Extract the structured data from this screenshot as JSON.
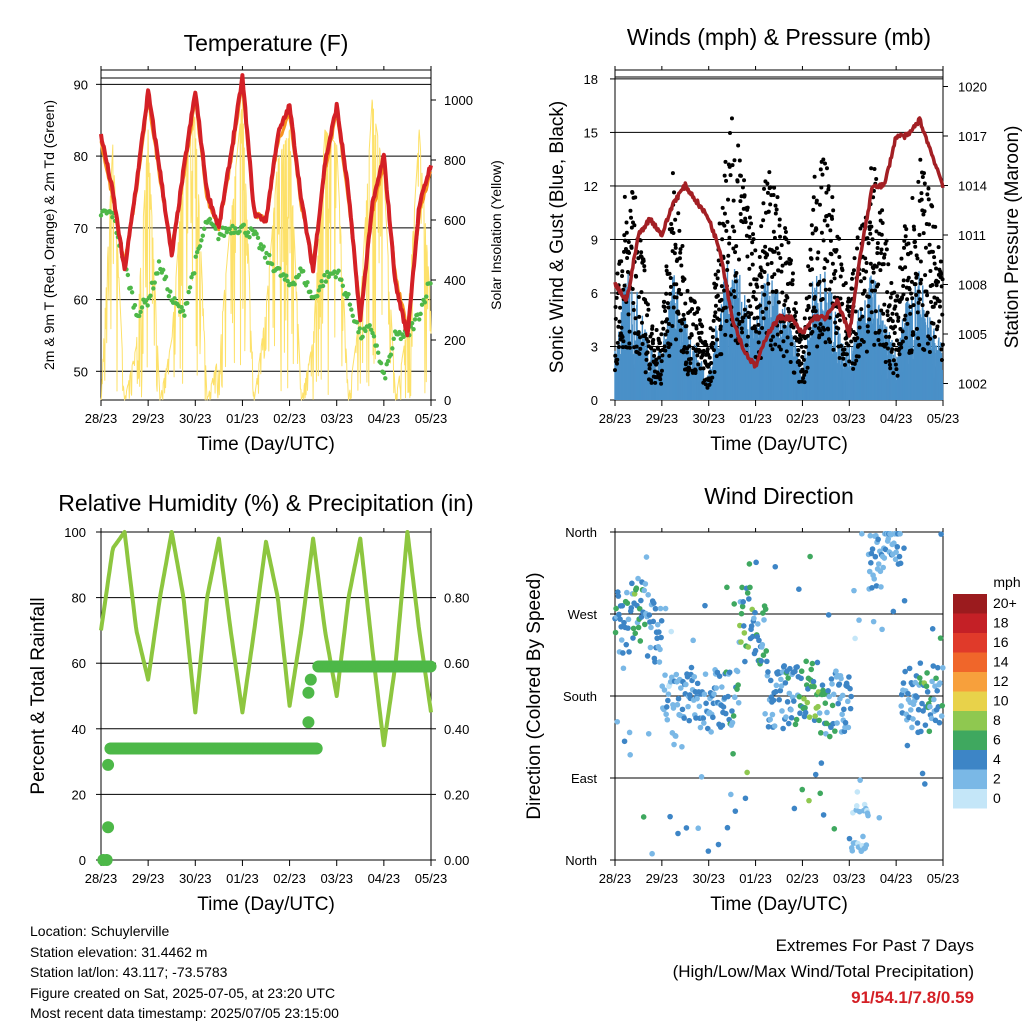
{
  "x_ticks": [
    "28/23",
    "29/23",
    "30/23",
    "01/23",
    "02/23",
    "03/23",
    "04/23",
    "05/23"
  ],
  "xlabel": "Time (Day/UTC)",
  "panels": {
    "temperature": {
      "title": "Temperature (F)",
      "ylabel_left": "2m & 9m T (Red, Orange) & 2m Td (Green)",
      "ylabel_right": "Solar Insolation (Yellow)",
      "left_ticks": [
        "50",
        "60",
        "70",
        "80",
        "90"
      ],
      "right_ticks": [
        "0",
        "200",
        "400",
        "600",
        "800",
        "1000"
      ]
    },
    "winds": {
      "title": "Winds (mph) & Pressure (mb)",
      "ylabel_left": "Sonic Wind & Gust (Blue, Black)",
      "ylabel_right": "Station Pressure (Maroon)",
      "left_ticks": [
        "0",
        "3",
        "6",
        "9",
        "12",
        "15",
        "18"
      ],
      "right_ticks": [
        "1002",
        "1005",
        "1008",
        "1011",
        "1014",
        "1017",
        "1020"
      ]
    },
    "humidity": {
      "title": "Relative Humidity (%) & Precipitation (in)",
      "ylabel_left": "Percent & Total Rainfall",
      "left_ticks": [
        "0",
        "20",
        "40",
        "60",
        "80",
        "100"
      ],
      "right_ticks": [
        "0.00",
        "0.20",
        "0.40",
        "0.60",
        "0.80"
      ]
    },
    "direction": {
      "title": "Wind Direction",
      "ylabel_left": "Direction (Colored By Speed)",
      "left_ticks": [
        "North",
        "East",
        "South",
        "West",
        "North"
      ],
      "legend_title": "mph",
      "legend_labels": [
        "20+",
        "18",
        "16",
        "14",
        "12",
        "10",
        "8",
        "6",
        "4",
        "2",
        "0"
      ],
      "legend_colors": [
        "#9b1b1e",
        "#c42026",
        "#e03a2a",
        "#f0662a",
        "#f7a03c",
        "#e8d24a",
        "#8fc850",
        "#3fa85f",
        "#3d85c6",
        "#7ab8e6",
        "#c4e6f8"
      ]
    }
  },
  "info_lines": [
    "Location: Schuylerville",
    "Station elevation: 31.4462 m",
    "Station lat/lon: 43.117; -73.5783",
    "Figure created on Sat, 2025-07-05, at 23:20 UTC",
    "Most recent data timestamp: 2025/07/05 23:15:00"
  ],
  "extremes": {
    "title": "Extremes For Past 7 Days",
    "subtitle": "(High/Low/Max Wind/Total Precipitation)",
    "values": "91/54.1/7.8/0.59"
  },
  "chart_data": [
    {
      "type": "line",
      "title": "Temperature (F)",
      "xlabel": "Time (Day/UTC)",
      "x": [
        0,
        0.25,
        0.5,
        0.75,
        1,
        1.25,
        1.5,
        1.75,
        2,
        2.25,
        2.5,
        2.75,
        3,
        3.25,
        3.5,
        3.75,
        4,
        4.25,
        4.5,
        4.75,
        5,
        5.25,
        5.5,
        5.75,
        6,
        6.25,
        6.5,
        6.75,
        7
      ],
      "x_unit": "days since 28/23",
      "ylim": [
        46,
        92
      ],
      "y2lim": [
        0,
        1100
      ],
      "series": [
        {
          "name": "2m T",
          "color": "#d42026",
          "axis": "left",
          "values": [
            83,
            75,
            64,
            76,
            89,
            78,
            66,
            78,
            89,
            75,
            70,
            80,
            91,
            72,
            71,
            83,
            87,
            74,
            64,
            79,
            87,
            75,
            57,
            73,
            80,
            62,
            55,
            73,
            79
          ]
        },
        {
          "name": "9m T",
          "color": "#f7941d",
          "axis": "left",
          "values": [
            82,
            74,
            65,
            75,
            88,
            77,
            67,
            77,
            88,
            74,
            70,
            79,
            90,
            72,
            71,
            82,
            86,
            73,
            65,
            78,
            86,
            74,
            58,
            72,
            79,
            63,
            56,
            72,
            78
          ]
        },
        {
          "name": "2m Td",
          "color": "#4db848",
          "axis": "left",
          "values": [
            72,
            72,
            65,
            58,
            60,
            65,
            60,
            58,
            65,
            71,
            69,
            70,
            70,
            69,
            66,
            64,
            62,
            64,
            60,
            63,
            64,
            60,
            55,
            56,
            49,
            55,
            55,
            58,
            63
          ]
        },
        {
          "name": "Solar Insolation",
          "color": "#fde16a",
          "axis": "right",
          "values": [
            0,
            850,
            0,
            180,
            900,
            0,
            200,
            780,
            950,
            0,
            150,
            600,
            1000,
            0,
            300,
            800,
            900,
            0,
            200,
            900,
            850,
            0,
            300,
            1000,
            750,
            0,
            250,
            900,
            300
          ]
        }
      ]
    },
    {
      "type": "line",
      "title": "Winds (mph) & Pressure (mb)",
      "xlabel": "Time (Day/UTC)",
      "x": [
        0,
        0.25,
        0.5,
        0.75,
        1,
        1.25,
        1.5,
        1.75,
        2,
        2.25,
        2.5,
        2.75,
        3,
        3.25,
        3.5,
        3.75,
        4,
        4.25,
        4.5,
        4.75,
        5,
        5.25,
        5.5,
        5.75,
        6,
        6.25,
        6.5,
        6.75,
        7
      ],
      "x_unit": "days since 28/23",
      "ylim": [
        0,
        18.5
      ],
      "y2lim": [
        1001,
        1021
      ],
      "series": [
        {
          "name": "Sonic Wind",
          "color": "#4a90c8",
          "axis": "left",
          "values": [
            2,
            5,
            4,
            2,
            2,
            5,
            3,
            2,
            1,
            4,
            6,
            4,
            3,
            5,
            4,
            3,
            1,
            5,
            5,
            3,
            2,
            4,
            5,
            3,
            2,
            4,
            5,
            3,
            2
          ]
        },
        {
          "name": "Gust",
          "color": "#000000",
          "axis": "left",
          "values": [
            4,
            9,
            8,
            3,
            3,
            10,
            5,
            4,
            2,
            8,
            12,
            9,
            6,
            10,
            8,
            6,
            2,
            9,
            10,
            7,
            4,
            8,
            10,
            7,
            4,
            8,
            10,
            8,
            5
          ]
        },
        {
          "name": "Station Pressure",
          "color": "#a31f24",
          "axis": "right",
          "values": [
            1008,
            1007,
            1011,
            1012,
            1011,
            1013,
            1014,
            1013,
            1012,
            1010,
            1006,
            1004,
            1003,
            1005,
            1006,
            1006,
            1005,
            1006,
            1006,
            1007,
            1005,
            1010,
            1014,
            1014,
            1017,
            1017,
            1018,
            1016,
            1014
          ]
        }
      ]
    },
    {
      "type": "line",
      "title": "Relative Humidity (%) & Precipitation (in)",
      "xlabel": "Time (Day/UTC)",
      "x": [
        0,
        0.25,
        0.5,
        0.75,
        1,
        1.25,
        1.5,
        1.75,
        2,
        2.25,
        2.5,
        2.75,
        3,
        3.25,
        3.5,
        3.75,
        4,
        4.25,
        4.5,
        4.75,
        5,
        5.25,
        5.5,
        5.75,
        6,
        6.25,
        6.5,
        6.75,
        7
      ],
      "x_unit": "days since 28/23",
      "ylim": [
        0,
        100
      ],
      "y2lim": [
        0,
        1.0
      ],
      "series": [
        {
          "name": "Relative Humidity",
          "color": "#8dc63f",
          "axis": "left",
          "values": [
            70,
            95,
            100,
            70,
            55,
            80,
            100,
            80,
            45,
            80,
            98,
            70,
            45,
            70,
            97,
            80,
            47,
            70,
            98,
            70,
            50,
            80,
            98,
            65,
            35,
            60,
            100,
            70,
            45
          ]
        },
        {
          "name": "Total Precipitation",
          "color": "#4db848",
          "axis": "right",
          "values": [
            0.0,
            0.34,
            0.34,
            0.34,
            0.34,
            0.34,
            0.34,
            0.34,
            0.34,
            0.34,
            0.34,
            0.34,
            0.34,
            0.34,
            0.34,
            0.34,
            0.34,
            0.34,
            0.34,
            0.34,
            0.59,
            0.59,
            0.59,
            0.59,
            0.59,
            0.59,
            0.59,
            0.59,
            0.59
          ]
        }
      ]
    },
    {
      "type": "scatter",
      "title": "Wind Direction",
      "xlabel": "Time (Day/UTC)",
      "y_categories": [
        "North",
        "East",
        "South",
        "West",
        "North"
      ],
      "ylim_degrees": [
        360,
        0
      ],
      "x": [
        0.2,
        0.5,
        0.8,
        1.2,
        1.6,
        2.2,
        2.5,
        2.8,
        3.1,
        3.4,
        3.8,
        4.2,
        4.5,
        4.9,
        5.2,
        5.6,
        5.9,
        6.3,
        6.6,
        6.9
      ],
      "x_unit": "days since 28/23",
      "series": [
        {
          "name": "direction (deg)",
          "values": [
            260,
            275,
            250,
            170,
            180,
            175,
            180,
            265,
            245,
            175,
            180,
            185,
            170,
            175,
            40,
            330,
            355,
            180,
            175,
            180
          ]
        },
        {
          "name": "speed (mph)",
          "values": [
            5,
            6,
            4,
            3,
            4,
            4,
            5,
            7,
            6,
            4,
            5,
            7,
            6,
            4,
            2,
            3,
            4,
            4,
            6,
            5
          ]
        }
      ]
    }
  ]
}
